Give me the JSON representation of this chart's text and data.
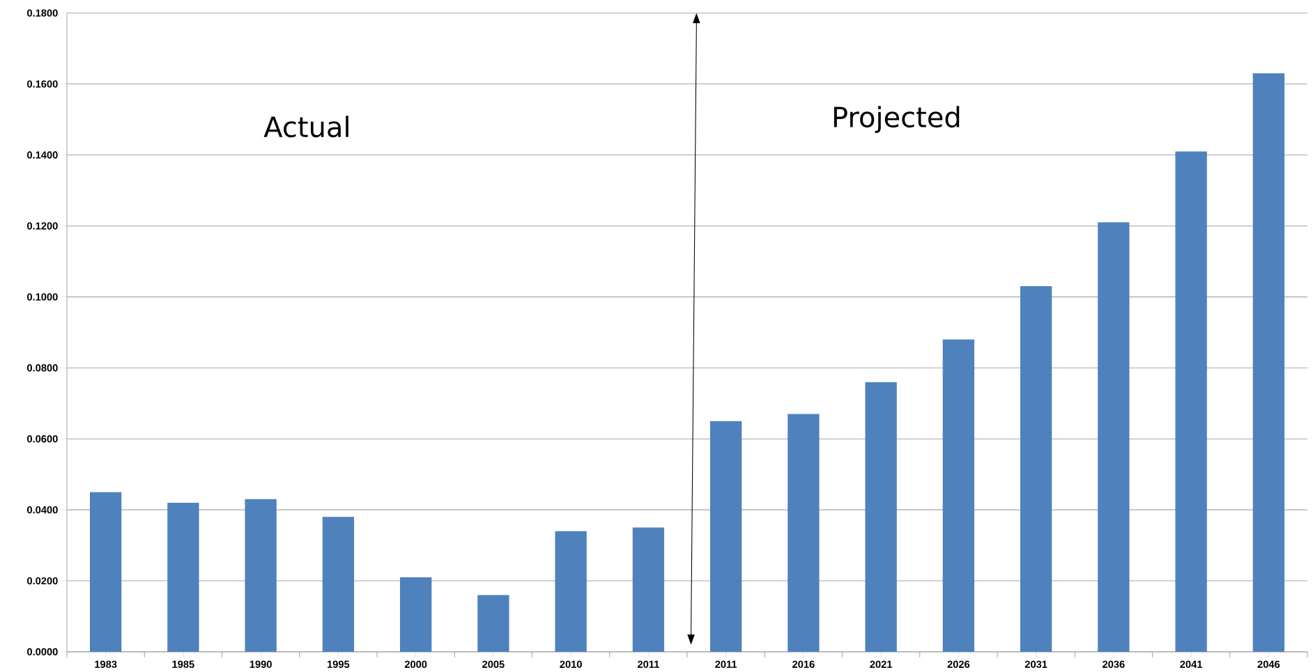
{
  "chart_data": {
    "type": "bar",
    "categories": [
      "1983",
      "1985",
      "1990",
      "1995",
      "2000",
      "2005",
      "2010",
      "2011",
      "2011",
      "2016",
      "2021",
      "2026",
      "2031",
      "2036",
      "2041",
      "2046"
    ],
    "values": [
      0.045,
      0.042,
      0.043,
      0.038,
      0.021,
      0.016,
      0.034,
      0.035,
      0.065,
      0.067,
      0.076,
      0.088,
      0.103,
      0.121,
      0.141,
      0.163
    ],
    "color": "#4f81bd",
    "ylim": [
      0,
      0.18
    ],
    "yticks": [
      {
        "value": 0,
        "label": "0.0000"
      },
      {
        "value": 0.02,
        "label": "0.0200"
      },
      {
        "value": 0.04,
        "label": "0.0400"
      },
      {
        "value": 0.06,
        "label": "0.0600"
      },
      {
        "value": 0.08,
        "label": "0.0800"
      },
      {
        "value": 0.1,
        "label": "0.1000"
      },
      {
        "value": 0.12,
        "label": "0.1200"
      },
      {
        "value": 0.14,
        "label": "0.1400"
      },
      {
        "value": 0.16,
        "label": "0.1600"
      },
      {
        "value": 0.18,
        "label": "0.1800"
      }
    ],
    "grid": "y",
    "annotations": [
      "Actual",
      "Projected"
    ]
  }
}
